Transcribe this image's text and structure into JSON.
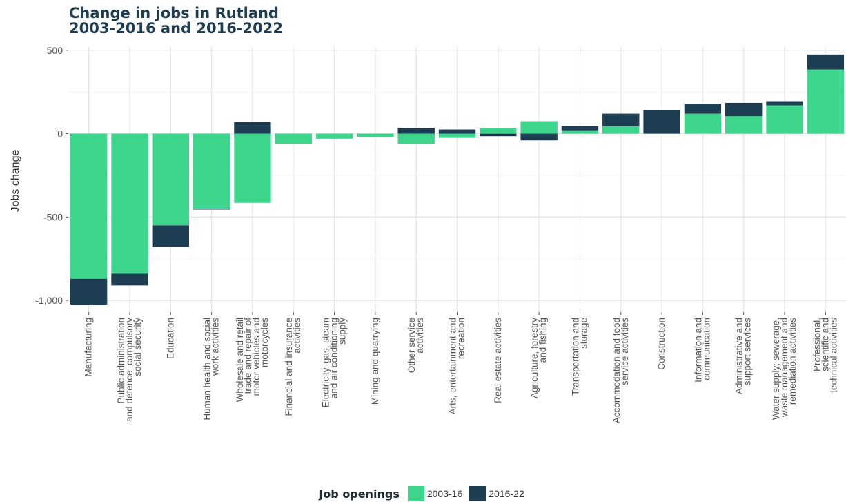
{
  "chart_data": {
    "type": "bar",
    "title_lines": [
      "Change in jobs in Rutland",
      "2003-2016 and 2016-2022"
    ],
    "ylabel": "Jobs change",
    "ylim": [
      -1070,
      520
    ],
    "y_ticks": [
      500,
      0,
      -500,
      -1000
    ],
    "y_tick_labels": [
      "500",
      "0",
      "-500",
      "-1,000"
    ],
    "grid": true,
    "legend_title": "Job openings",
    "legend_position": "bottom",
    "categories": [
      [
        "Manufacturing"
      ],
      [
        "Public administration",
        "and defence; compulsory",
        "social security"
      ],
      [
        "Education"
      ],
      [
        "Human health and social",
        "work activities"
      ],
      [
        "Wholesale and retail",
        "trade and repair of",
        "motor vehicles and",
        "motorcycles"
      ],
      [
        "Financial and insurance",
        "activities"
      ],
      [
        "Electricity, gas, steam",
        "and air conditioning",
        "supply"
      ],
      [
        "Mining and quarrying"
      ],
      [
        "Other service",
        "activities"
      ],
      [
        "Arts, entertainment and",
        "recreation"
      ],
      [
        "Real estate activities"
      ],
      [
        "Agriculture, forestry",
        "and fishing"
      ],
      [
        "Transportation and",
        "storage"
      ],
      [
        "Accommodation and food",
        "service activities"
      ],
      [
        "Construction"
      ],
      [
        "Information and",
        "communication"
      ],
      [
        "Administrative and",
        "support services"
      ],
      [
        "Water supply; sewerage,",
        "waste management and",
        "remediation activities"
      ],
      [
        "Professional,",
        "scientific and",
        "technical activities"
      ]
    ],
    "series": [
      {
        "name": "2003-16",
        "color": "#3dd68c",
        "values": [
          -870,
          -840,
          -550,
          -450,
          -415,
          -60,
          -30,
          -20,
          -60,
          -25,
          35,
          75,
          20,
          45,
          0,
          120,
          105,
          170,
          385
        ]
      },
      {
        "name": "2016-22",
        "color": "#1d3e52",
        "values": [
          -155,
          -70,
          -130,
          -5,
          70,
          0,
          0,
          0,
          35,
          25,
          -15,
          -40,
          25,
          75,
          140,
          60,
          80,
          25,
          90
        ]
      }
    ]
  }
}
